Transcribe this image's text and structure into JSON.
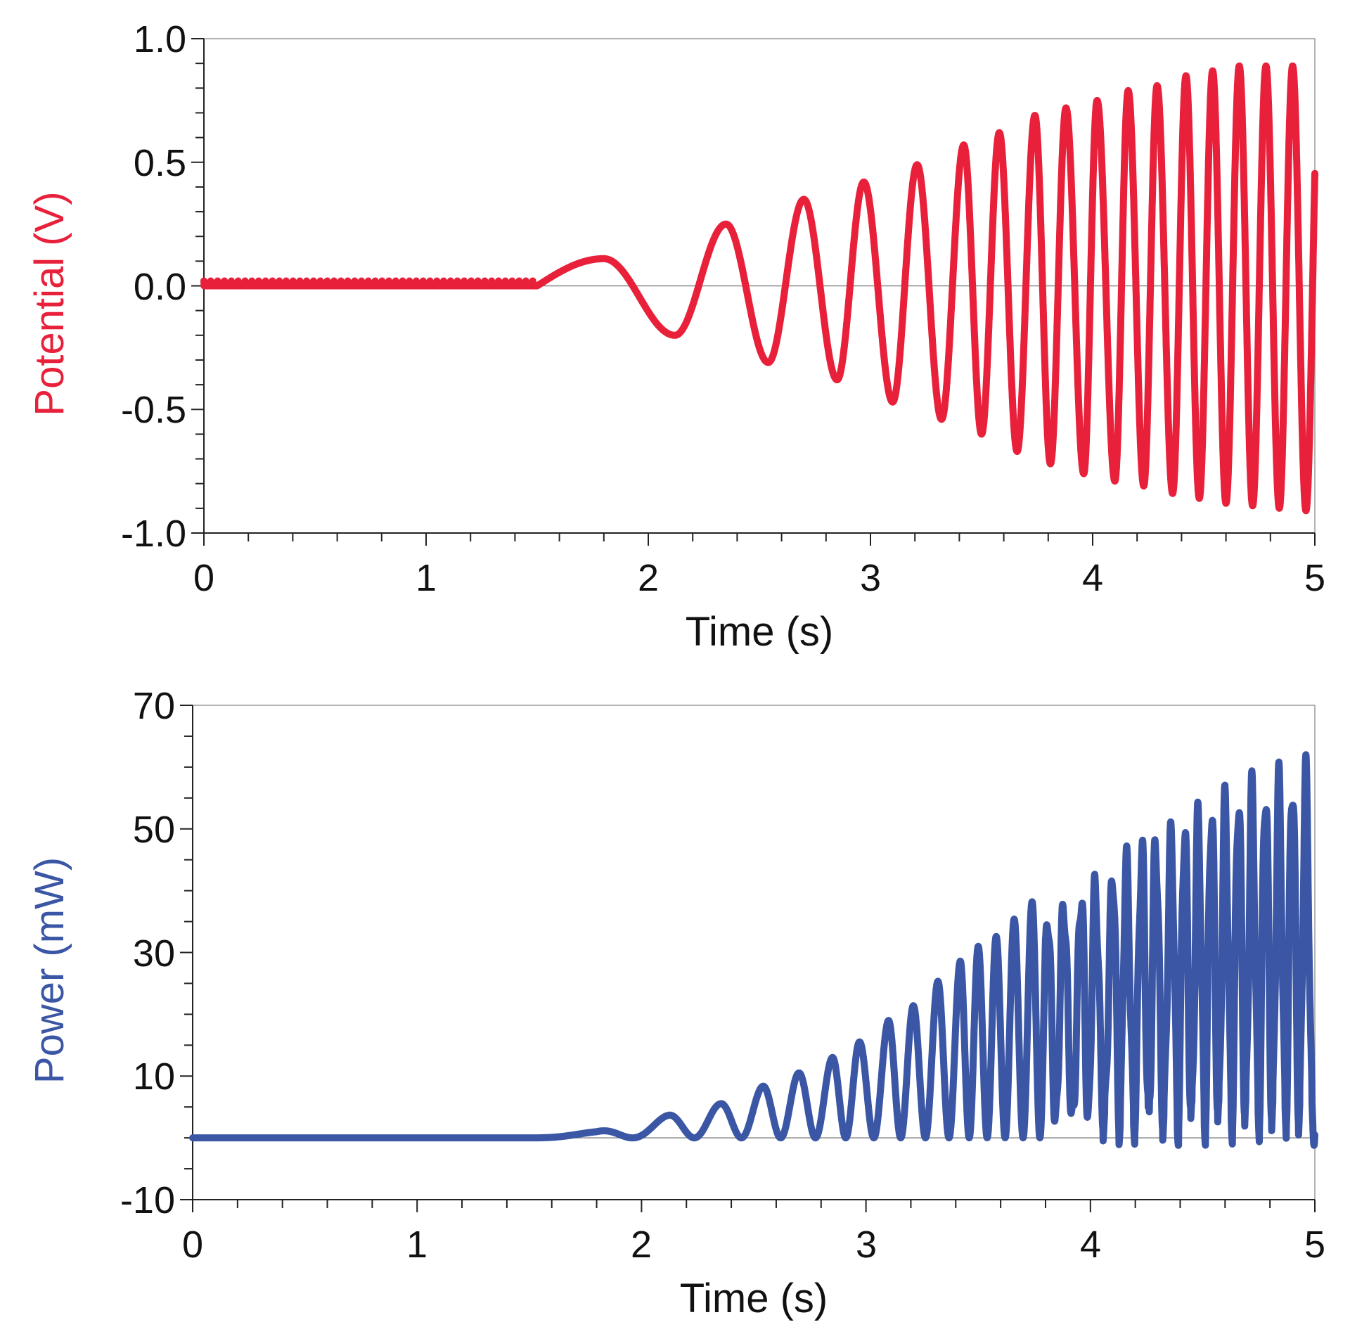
{
  "chart_data": [
    {
      "type": "line",
      "title": "",
      "xlabel": "Time (s)",
      "ylabel": "Potential (V)",
      "xlim": [
        0,
        5
      ],
      "ylim": [
        -1.0,
        1.0
      ],
      "x_ticks": [
        "0",
        "1",
        "2",
        "3",
        "4",
        "5"
      ],
      "y_ticks": [
        "1.0",
        "0.5",
        "0.0",
        "-0.5",
        "-1.0"
      ],
      "grid": false,
      "zero_line": true,
      "color": "#e8203a",
      "ylabel_color": "#e8203a",
      "series": [
        {
          "description": "sinusoidal potential, ~0 until 1.5 s, then oscillation with growing amplitude and frequency (chirp)",
          "onset_s": 1.5,
          "t": [
            0.0,
            1.5,
            1.8,
            2.1,
            2.35,
            2.55,
            2.7,
            2.85,
            3.0,
            3.1,
            3.22,
            3.32,
            3.42,
            3.5,
            3.58,
            3.65,
            3.72,
            3.8,
            3.88,
            4.0,
            4.2,
            4.4,
            4.6,
            4.8,
            5.0
          ],
          "amplitude": [
            0.0,
            0.0,
            0.11,
            0.2,
            0.25,
            0.31,
            0.35,
            0.38,
            0.42,
            0.46,
            0.49,
            0.53,
            0.57,
            0.6,
            0.63,
            0.66,
            0.69,
            0.71,
            0.73,
            0.76,
            0.8,
            0.84,
            0.87,
            0.89,
            0.9
          ],
          "peaks": [
            {
              "t": 1.8,
              "v": 0.11
            },
            {
              "t": 2.35,
              "v": 0.25
            },
            {
              "t": 2.7,
              "v": 0.35
            },
            {
              "t": 2.97,
              "v": 0.42
            },
            {
              "t": 3.21,
              "v": 0.49
            },
            {
              "t": 3.42,
              "v": 0.57
            },
            {
              "t": 3.58,
              "v": 0.62
            },
            {
              "t": 3.74,
              "v": 0.69
            },
            {
              "t": 3.88,
              "v": 0.72
            },
            {
              "t": 4.02,
              "v": 0.75
            },
            {
              "t": 4.16,
              "v": 0.79
            },
            {
              "t": 4.29,
              "v": 0.81
            },
            {
              "t": 4.42,
              "v": 0.85
            },
            {
              "t": 4.54,
              "v": 0.87
            },
            {
              "t": 4.66,
              "v": 0.89
            },
            {
              "t": 4.78,
              "v": 0.89
            },
            {
              "t": 4.9,
              "v": 0.89
            }
          ],
          "troughs": [
            {
              "t": 2.12,
              "v": -0.2
            },
            {
              "t": 2.54,
              "v": -0.31
            },
            {
              "t": 2.85,
              "v": -0.38
            },
            {
              "t": 3.1,
              "v": -0.47
            },
            {
              "t": 3.32,
              "v": -0.54
            },
            {
              "t": 3.5,
              "v": -0.6
            },
            {
              "t": 3.66,
              "v": -0.67
            },
            {
              "t": 3.81,
              "v": -0.72
            },
            {
              "t": 3.96,
              "v": -0.76
            },
            {
              "t": 4.1,
              "v": -0.79
            },
            {
              "t": 4.23,
              "v": -0.81
            },
            {
              "t": 4.36,
              "v": -0.84
            },
            {
              "t": 4.48,
              "v": -0.86
            },
            {
              "t": 4.6,
              "v": -0.88
            },
            {
              "t": 4.72,
              "v": -0.89
            },
            {
              "t": 4.84,
              "v": -0.9
            },
            {
              "t": 4.96,
              "v": -0.91
            }
          ]
        }
      ]
    },
    {
      "type": "line",
      "title": "",
      "xlabel": "Time (s)",
      "ylabel": "Power (mW)",
      "xlim": [
        0,
        5
      ],
      "ylim": [
        -10,
        70
      ],
      "x_ticks": [
        "0",
        "1",
        "2",
        "3",
        "4",
        "5"
      ],
      "y_ticks": [
        "70",
        "50",
        "30",
        "10",
        "-10"
      ],
      "grid": false,
      "zero_line": true,
      "color": "#3a56a4",
      "ylabel_color": "#3a56a4",
      "series": [
        {
          "description": "instantaneous power, ~0 until 1.5 s, then oscillating between ~0 and a growing peak envelope; rapid oscillation fills region after ~3.8 s",
          "onset_s": 1.5,
          "t": [
            0.0,
            1.5,
            1.8,
            2.1,
            2.35,
            2.55,
            2.7,
            2.85,
            2.97,
            3.1,
            3.2,
            3.31,
            3.4,
            3.5,
            3.6,
            3.7,
            3.8,
            3.9,
            4.0,
            4.1,
            4.2,
            4.3,
            4.4,
            4.5,
            4.6,
            4.7,
            4.8,
            4.9,
            5.0
          ],
          "peak_envelope": [
            0,
            0,
            1.0,
            3.5,
            5.5,
            8.5,
            10.5,
            13,
            15.5,
            19,
            21,
            25,
            28,
            31,
            33,
            37,
            40,
            43,
            45,
            48,
            52,
            54,
            56,
            59,
            61,
            63,
            64,
            65.5,
            66
          ],
          "min_value": -1.5
        }
      ]
    }
  ]
}
